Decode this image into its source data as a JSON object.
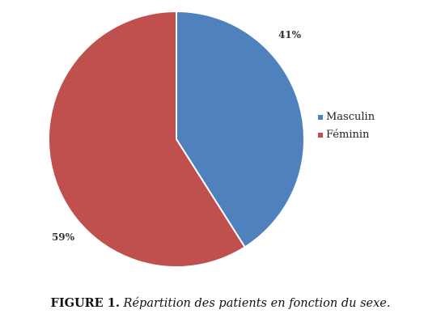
{
  "chart_data": {
    "type": "pie",
    "categories": [
      "Masculin",
      "Féminin"
    ],
    "values": [
      41,
      59
    ],
    "data_labels": [
      "41%",
      "59%"
    ],
    "colors": [
      "#4f81bd",
      "#c0504d"
    ],
    "legend_position": "right",
    "title": "",
    "start": "top",
    "direction": "clockwise"
  },
  "caption": {
    "number": "FIGURE 1.",
    "text": "Répartition des patients en fonction du sexe."
  }
}
